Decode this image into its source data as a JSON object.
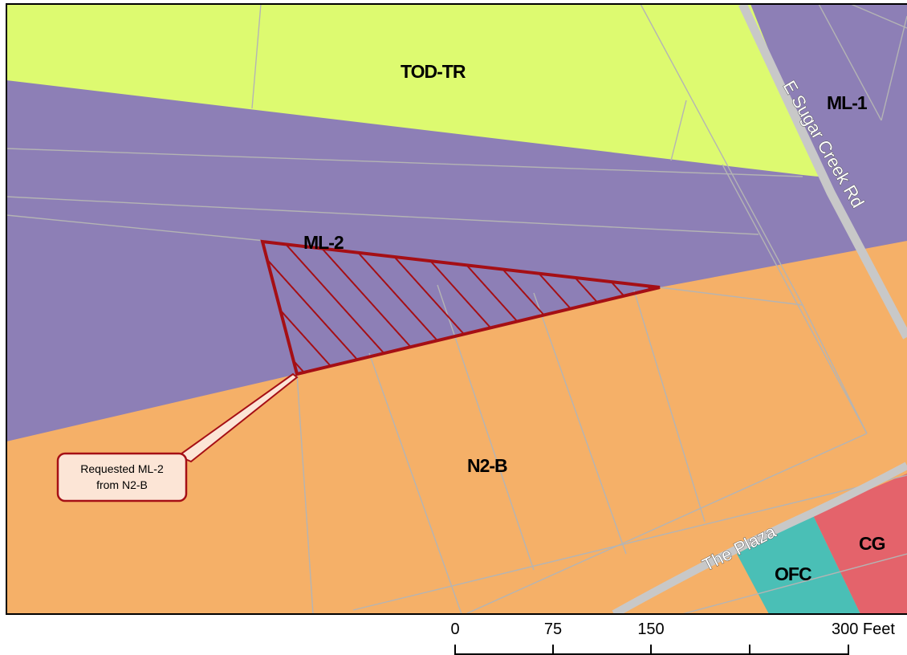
{
  "map": {
    "zones": {
      "tod_tr": "TOD-TR",
      "ml_1": "ML-1",
      "ml_2": "ML-2",
      "n2_b": "N2-B",
      "ofc": "OFC",
      "cg": "CG"
    },
    "roads": {
      "sugar_creek": "E Sugar Creek Rd",
      "plaza": "The Plaza"
    },
    "callout": {
      "line1": "Requested ML-2",
      "line2": "from N2-B"
    },
    "scale_bar": {
      "ticks": [
        "0",
        "75",
        "150",
        "300 Feet"
      ]
    },
    "colors": {
      "tod_tr": "#DDFA70",
      "ml": "#8D7FB6",
      "n2_b": "#F5B068",
      "ofc": "#4ABFB6",
      "cg": "#E4636B",
      "request_outline": "#A50F15",
      "road": "#C8C8C8",
      "parcel_lines": "#B4B4B4"
    }
  }
}
